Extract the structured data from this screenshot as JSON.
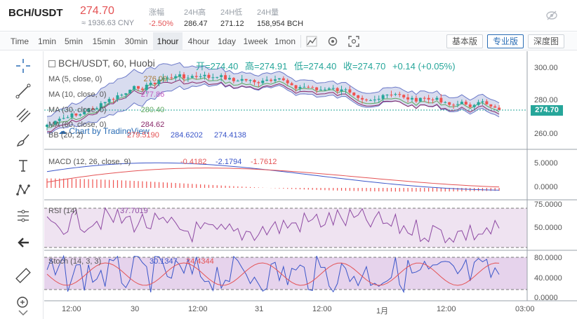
{
  "ticker": {
    "pair": "BCH/USDT",
    "last_price": "274.70",
    "cny_price": "≈ 1936.63 CNY",
    "stats": [
      {
        "label": "涨幅",
        "value": "-2.50%",
        "red": true
      },
      {
        "label": "24H高",
        "value": "286.47",
        "red": false
      },
      {
        "label": "24H低",
        "value": "271.12",
        "red": false
      },
      {
        "label": "24H量",
        "value": "158,954 BCH",
        "red": false
      }
    ]
  },
  "toolbar": {
    "timeframes": [
      "Time",
      "1min",
      "5min",
      "15min",
      "30min",
      "1hour",
      "4hour",
      "1day",
      "1week",
      "1mon"
    ],
    "active_timeframe": "1hour",
    "modes": [
      "基本版",
      "专业版",
      "深度图"
    ],
    "active_mode": "专业版"
  },
  "left_tools": [
    "crosshair-icon",
    "trend-line-icon",
    "fib-lines-icon",
    "brush-icon",
    "text-tool-icon",
    "pattern-icon",
    "measure-icon",
    "back-arrow-icon",
    "ruler-icon",
    "zoom-icon"
  ],
  "legend": {
    "main_title": "BCH/USDT, 60, Huobi",
    "ohlc": {
      "open_label": "开=274.40",
      "high_label": "高=274.91",
      "low_label": "低=274.40",
      "close_label": "收=274.70",
      "change": "+0.14 (+0.05%)"
    },
    "ma": [
      {
        "label": "MA (5, close, 0)",
        "value": "276.00",
        "color": "#a97c3a"
      },
      {
        "label": "MA (10, close, 0)",
        "value": "277.86",
        "color": "#c15bc1"
      },
      {
        "label": "MA (30, close, 0)",
        "value": "280.40",
        "color": "#5fa85f"
      },
      {
        "label": "MA (60, close, 0)",
        "value": "284.62",
        "color": "#8a2a6a"
      }
    ],
    "bb": {
      "label": "BB (20, 2)",
      "v1": "279.5190",
      "v2": "284.6202",
      "v3": "274.4138"
    },
    "watermark": "Chart by TradingView",
    "macd": {
      "label": "MACD (12, 26, close, 9)",
      "v1": "-0.4182",
      "v2": "-2.1794",
      "v3": "-1.7612"
    },
    "rsi": {
      "label": "RSI (14)",
      "value": "37.7019"
    },
    "stoch": {
      "label": "Stoch (14, 3, 3)",
      "k": "30.1347",
      "d": "24.4344"
    }
  },
  "price_axis": {
    "ticks": [
      "300.00",
      "280.00",
      "260.00"
    ],
    "current": "274.70"
  },
  "macd_axis": {
    "ticks": [
      "5.0000",
      "0.0000"
    ]
  },
  "rsi_axis": {
    "ticks": [
      "75.0000",
      "50.0000"
    ]
  },
  "stoch_axis": {
    "ticks": [
      "80.0000",
      "40.0000",
      "0.0000"
    ]
  },
  "time_axis": {
    "ticks": [
      "12:00",
      "30",
      "12:00",
      "31",
      "12:00",
      "1月",
      "12:00",
      "03:00"
    ]
  },
  "colors": {
    "up": "#26a69a",
    "down": "#ef5350",
    "bb_fill": "#c7cde8",
    "pane_fill": "#efe3f1"
  }
}
